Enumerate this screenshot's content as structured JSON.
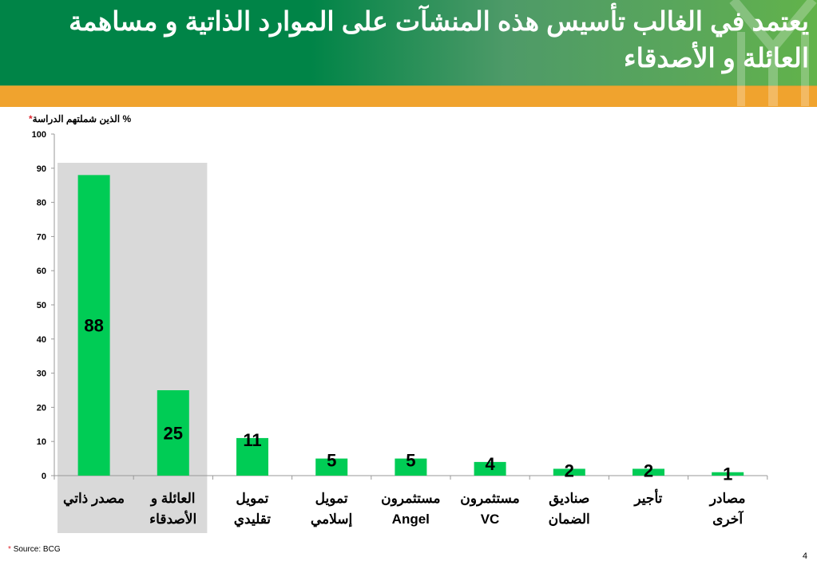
{
  "title": "يعتمد في الغالب تأسيس هذه المنشآت على الموارد الذاتية و مساهمة العائلة و الأصدقاء",
  "footnote": {
    "marker": "*",
    "text": "Source: BCG"
  },
  "page_number": "4",
  "colors": {
    "bar": "#00cc55",
    "highlight": "#d9d9d9",
    "header_green": "#008447",
    "band_orange": "#f0a32e",
    "asterisk": "#e0262e"
  },
  "chart_data": {
    "type": "bar",
    "ylabel": "% الذين شملتهم الدراسة",
    "ylabel_marker": "*",
    "ylim": [
      0,
      100
    ],
    "yticks": [
      "0",
      "10",
      "20",
      "30",
      "40",
      "50",
      "60",
      "70",
      "80",
      "90",
      "100"
    ],
    "grid": false,
    "highlighted_categories": [
      0,
      1
    ],
    "categories": [
      [
        "مصدر ذاتي"
      ],
      [
        "العائلة و",
        "الأصدقاء"
      ],
      [
        "تمويل",
        "تقليدي"
      ],
      [
        "تمويل",
        "إسلامي"
      ],
      [
        "مستثمرون",
        "Angel"
      ],
      [
        "مستثمرون",
        "VC"
      ],
      [
        "صناديق",
        "الضمان"
      ],
      [
        "تأجير"
      ],
      [
        "مصادر",
        "آخرى"
      ]
    ],
    "values": [
      88,
      25,
      11,
      5,
      5,
      4,
      2,
      2,
      1
    ]
  }
}
